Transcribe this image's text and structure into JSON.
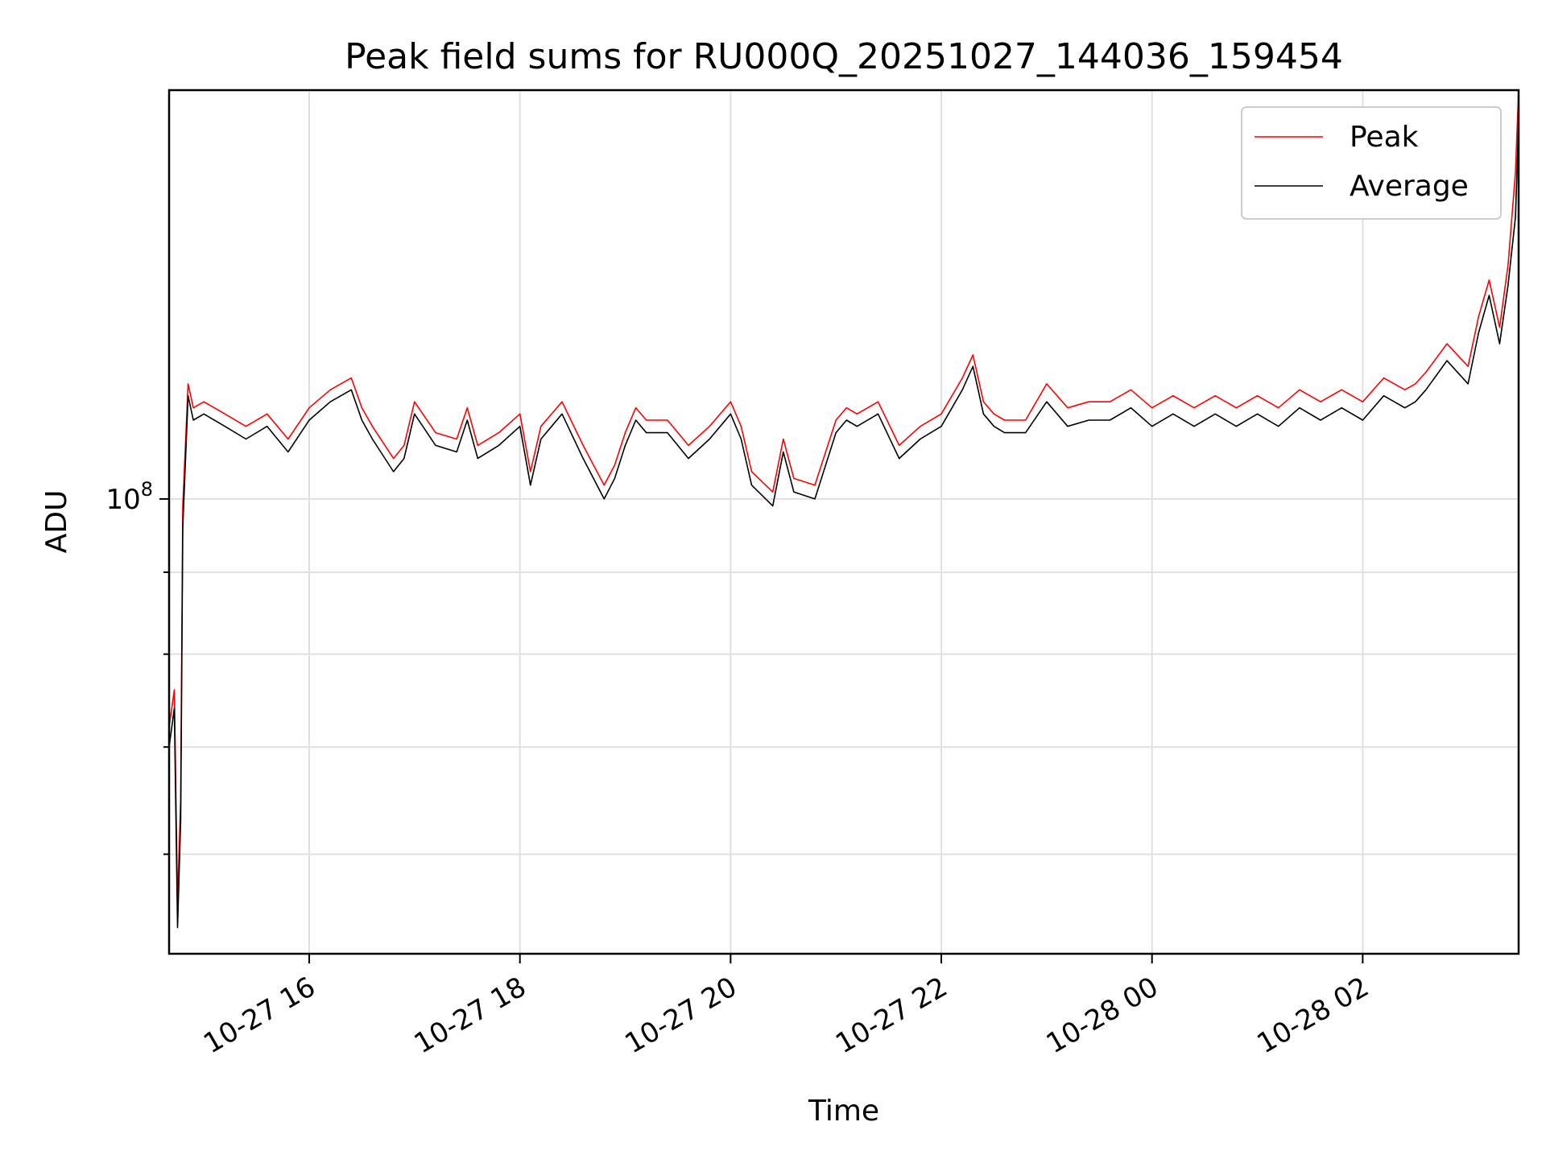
{
  "chart_data": {
    "type": "line",
    "title": "Peak field sums for RU000Q_20251027_144036_159454",
    "xlabel": "Time",
    "ylabel": "ADU",
    "yscale": "log",
    "x_unit": "hours since 2025-10-27 00:00",
    "xlim": [
      14.67,
      27.48
    ],
    "ylim": [
      52000000,
      180000000
    ],
    "x_ticks": [
      {
        "value": 16,
        "label": "10-27 16"
      },
      {
        "value": 18,
        "label": "10-27 18"
      },
      {
        "value": 20,
        "label": "10-27 20"
      },
      {
        "value": 22,
        "label": "10-27 22"
      },
      {
        "value": 24,
        "label": "10-28 00"
      },
      {
        "value": 26,
        "label": "10-28 02"
      }
    ],
    "y_ticks": [
      {
        "value": 100000000,
        "base": "10",
        "exp": "8"
      }
    ],
    "y_minor_ticks": [
      60000000,
      70000000,
      80000000,
      90000000
    ],
    "grid": true,
    "legend_position": "upper right",
    "series": [
      {
        "name": "Peak",
        "color": "#ff0000",
        "x": [
          14.67,
          14.72,
          14.75,
          14.78,
          14.8,
          14.85,
          14.9,
          15.0,
          15.2,
          15.4,
          15.6,
          15.8,
          16.0,
          16.2,
          16.4,
          16.5,
          16.6,
          16.8,
          16.9,
          17.0,
          17.2,
          17.4,
          17.5,
          17.6,
          17.8,
          18.0,
          18.1,
          18.2,
          18.4,
          18.6,
          18.8,
          18.9,
          19.0,
          19.1,
          19.2,
          19.4,
          19.6,
          19.8,
          20.0,
          20.1,
          20.2,
          20.4,
          20.5,
          20.6,
          20.8,
          21.0,
          21.1,
          21.2,
          21.4,
          21.6,
          21.8,
          22.0,
          22.2,
          22.3,
          22.4,
          22.5,
          22.6,
          22.8,
          23.0,
          23.2,
          23.4,
          23.6,
          23.8,
          24.0,
          24.2,
          24.4,
          24.6,
          24.8,
          25.0,
          25.2,
          25.4,
          25.6,
          25.8,
          26.0,
          26.2,
          26.4,
          26.5,
          26.6,
          26.8,
          27.0,
          27.1,
          27.2,
          27.3,
          27.38,
          27.45,
          27.48
        ],
        "y": [
          72000000,
          76000000,
          56000000,
          65000000,
          99000000,
          118000000,
          114000000,
          115000000,
          113000000,
          111000000,
          113000000,
          109000000,
          114000000,
          117000000,
          119000000,
          114000000,
          111000000,
          106000000,
          108000000,
          115000000,
          110000000,
          109000000,
          114000000,
          108000000,
          110000000,
          113000000,
          104000000,
          111000000,
          115000000,
          108000000,
          102000000,
          105000000,
          110000000,
          114000000,
          112000000,
          112000000,
          108000000,
          111000000,
          115000000,
          111000000,
          104000000,
          101000000,
          109000000,
          103000000,
          102000000,
          112000000,
          114000000,
          113000000,
          115000000,
          108000000,
          111000000,
          113000000,
          119000000,
          123000000,
          115000000,
          113000000,
          112000000,
          112000000,
          118000000,
          114000000,
          115000000,
          115000000,
          117000000,
          114000000,
          116000000,
          114000000,
          116000000,
          114000000,
          116000000,
          114000000,
          117000000,
          115000000,
          117000000,
          115000000,
          119000000,
          117000000,
          118000000,
          120000000,
          125000000,
          121000000,
          130000000,
          137000000,
          128000000,
          140000000,
          160000000,
          180000000
        ]
      },
      {
        "name": "Average",
        "color": "#000000",
        "x": [
          14.67,
          14.72,
          14.75,
          14.78,
          14.8,
          14.85,
          14.9,
          15.0,
          15.2,
          15.4,
          15.6,
          15.8,
          16.0,
          16.2,
          16.4,
          16.5,
          16.6,
          16.8,
          16.9,
          17.0,
          17.2,
          17.4,
          17.5,
          17.6,
          17.8,
          18.0,
          18.1,
          18.2,
          18.4,
          18.6,
          18.8,
          18.9,
          19.0,
          19.1,
          19.2,
          19.4,
          19.6,
          19.8,
          20.0,
          20.1,
          20.2,
          20.4,
          20.5,
          20.6,
          20.8,
          21.0,
          21.1,
          21.2,
          21.4,
          21.6,
          21.8,
          22.0,
          22.2,
          22.3,
          22.4,
          22.5,
          22.6,
          22.8,
          23.0,
          23.2,
          23.4,
          23.6,
          23.8,
          24.0,
          24.2,
          24.4,
          24.6,
          24.8,
          25.0,
          25.2,
          25.4,
          25.6,
          25.8,
          26.0,
          26.2,
          26.4,
          26.5,
          26.6,
          26.8,
          27.0,
          27.1,
          27.2,
          27.3,
          27.38,
          27.45,
          27.48
        ],
        "y": [
          70000000,
          74000000,
          54000000,
          63000000,
          96000000,
          116000000,
          112000000,
          113000000,
          111000000,
          109000000,
          111000000,
          107000000,
          112000000,
          115000000,
          117000000,
          112000000,
          109000000,
          104000000,
          106000000,
          113000000,
          108000000,
          107000000,
          112000000,
          106000000,
          108000000,
          111000000,
          102000000,
          109000000,
          113000000,
          106000000,
          100000000,
          103000000,
          108000000,
          112000000,
          110000000,
          110000000,
          106000000,
          109000000,
          113000000,
          109000000,
          102000000,
          99000000,
          107000000,
          101000000,
          100000000,
          110000000,
          112000000,
          111000000,
          113000000,
          106000000,
          109000000,
          111000000,
          117000000,
          121000000,
          113000000,
          111000000,
          110000000,
          110000000,
          115000000,
          111000000,
          112000000,
          112000000,
          114000000,
          111000000,
          113000000,
          111000000,
          113000000,
          111000000,
          113000000,
          111000000,
          114000000,
          112000000,
          114000000,
          112000000,
          116000000,
          114000000,
          115000000,
          117000000,
          122000000,
          118000000,
          127000000,
          134000000,
          125000000,
          136000000,
          150000000,
          172000000
        ]
      }
    ]
  }
}
